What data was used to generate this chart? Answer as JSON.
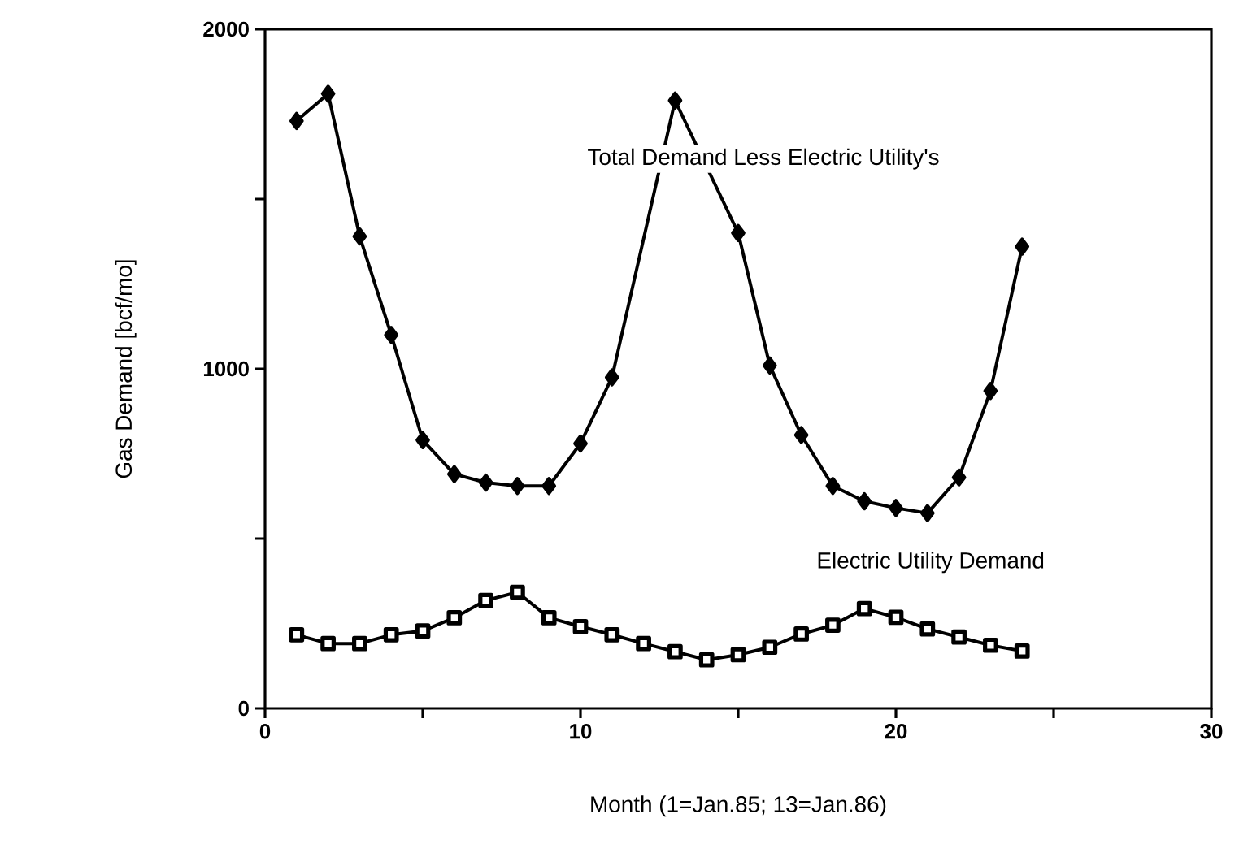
{
  "chart_data": {
    "type": "line",
    "xlabel": "Month (1=Jan.85; 13=Jan.86)",
    "ylabel": "Gas Demand [bcf/mo]",
    "x": [
      1,
      2,
      3,
      4,
      5,
      6,
      7,
      8,
      9,
      10,
      11,
      12,
      13,
      14,
      15,
      16,
      17,
      18,
      19,
      20,
      21,
      22,
      23,
      24
    ],
    "series": [
      {
        "name": "Total Demand Less Electric Utility's",
        "color": "#000000",
        "marker": "diamond",
        "values": [
          1730,
          1810,
          1390,
          1100,
          790,
          690,
          665,
          655,
          655,
          780,
          975,
          null,
          1790,
          null,
          1400,
          1010,
          805,
          655,
          610,
          590,
          575,
          680,
          935,
          1360
        ]
      },
      {
        "name": "Electric Utility Demand",
        "color": "#000000",
        "marker": "square",
        "values": [
          217,
          191,
          191,
          217,
          228,
          267,
          318,
          342,
          267,
          241,
          217,
          191,
          167,
          143,
          158,
          180,
          219,
          245,
          294,
          268,
          234,
          210,
          186,
          169
        ]
      }
    ],
    "xlim": [
      0,
      30
    ],
    "ylim": [
      0,
      2000
    ],
    "xticks": [
      0,
      {
        "value": 5,
        "label": null
      },
      10,
      {
        "value": 15,
        "label": null
      },
      20,
      {
        "value": 25,
        "label": null
      },
      30
    ],
    "yticks": [
      0,
      {
        "value": 500,
        "label": null
      },
      1000,
      {
        "value": 1500,
        "label": null
      },
      2000
    ],
    "grid": false,
    "legend": false,
    "line_style": "solid"
  }
}
